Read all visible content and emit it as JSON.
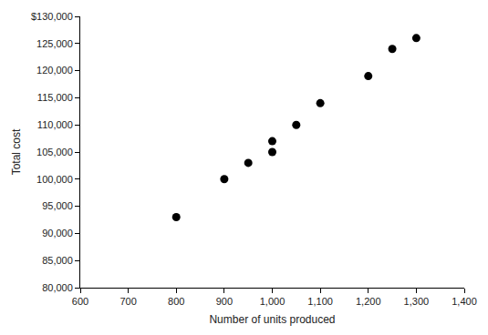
{
  "chart_data": {
    "type": "scatter",
    "x_label": "Number of units produced",
    "y_label": "Total cost",
    "x": [
      800,
      900,
      950,
      1000,
      1000,
      1050,
      1100,
      1200,
      1250,
      1300
    ],
    "values": [
      93000,
      100000,
      103000,
      105000,
      107000,
      110000,
      114000,
      119000,
      124000,
      126000
    ],
    "color": "#000000",
    "marker": "circle",
    "grid": false,
    "xlim": [
      600,
      1400
    ],
    "xticks": [
      600,
      700,
      800,
      900,
      {
        "value": 1000,
        "label": "1,000"
      },
      {
        "value": 1100,
        "label": "1,100"
      },
      {
        "value": 1200,
        "label": "1,200"
      },
      {
        "value": 1300,
        "label": "1,300"
      },
      {
        "value": 1400,
        "label": "1,400"
      }
    ],
    "ylim": [
      80000,
      130000
    ],
    "yticks": [
      {
        "value": 80000,
        "label": "80,000"
      },
      {
        "value": 85000,
        "label": "85,000"
      },
      {
        "value": 90000,
        "label": "90,000"
      },
      {
        "value": 95000,
        "label": "95,000"
      },
      {
        "value": 100000,
        "label": "100,000"
      },
      {
        "value": 105000,
        "label": "105,000"
      },
      {
        "value": 110000,
        "label": "110,000"
      },
      {
        "value": 115000,
        "label": "115,000"
      },
      {
        "value": 120000,
        "label": "120,000"
      },
      {
        "value": 125000,
        "label": "125,000"
      },
      {
        "value": 130000,
        "label": "$130,000"
      }
    ]
  }
}
